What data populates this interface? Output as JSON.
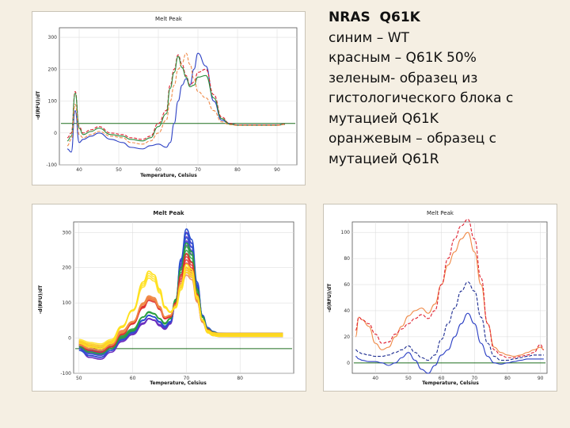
{
  "legend": {
    "lines": [
      "NRAS  Q61K",
      "синим – WT",
      "красным – Q61K 50%",
      "зеленым- образец из",
      "гистологического блока с",
      "мутацией Q61K",
      "оранжевым – образец с",
      "мутацией Q61R"
    ]
  },
  "chart_data": [
    {
      "type": "line",
      "title": "Melt Peak",
      "xlabel": "Temperature, Celsius",
      "ylabel": "-d(RFU)/dT",
      "xlim": [
        35,
        95
      ],
      "ylim": [
        -100,
        330
      ],
      "xticks": [
        40,
        50,
        60,
        70,
        80,
        90
      ],
      "yticks": [
        -100,
        0,
        100,
        200,
        300
      ],
      "threshold": 30,
      "series": [
        {
          "name": "WT",
          "color": "#2b3fc4",
          "x": [
            37,
            38,
            39,
            40,
            41,
            43,
            45,
            48,
            51,
            53,
            56,
            58,
            60,
            62,
            63,
            64,
            65,
            66,
            67,
            68,
            69,
            70,
            72,
            74,
            76,
            78,
            80,
            85,
            90,
            92
          ],
          "y": [
            -50,
            -60,
            70,
            -30,
            -20,
            -10,
            0,
            -20,
            -30,
            -45,
            -50,
            -40,
            -35,
            -45,
            -30,
            30,
            100,
            150,
            170,
            150,
            200,
            250,
            210,
            100,
            40,
            30,
            25,
            25,
            25,
            28
          ]
        },
        {
          "name": "Q61K 50%",
          "color": "#e02030",
          "x": [
            37,
            38,
            39,
            40,
            41,
            43,
            45,
            48,
            51,
            53,
            56,
            58,
            60,
            62,
            63,
            64,
            65,
            66,
            67,
            68,
            69,
            70,
            72,
            74,
            76,
            78,
            80,
            85,
            90,
            92
          ],
          "y": [
            -15,
            0,
            130,
            20,
            0,
            10,
            20,
            0,
            -5,
            -15,
            -20,
            -10,
            30,
            70,
            150,
            200,
            245,
            215,
            180,
            150,
            160,
            190,
            200,
            120,
            50,
            30,
            25,
            25,
            25,
            28
          ]
        },
        {
          "name": "Образец из гистологического блока с мутацией Q61K",
          "color": "#2a8c3a",
          "x": [
            37,
            38,
            39,
            40,
            41,
            43,
            45,
            48,
            51,
            53,
            56,
            58,
            60,
            62,
            63,
            64,
            65,
            66,
            67,
            68,
            69,
            70,
            72,
            74,
            76,
            78,
            80,
            85,
            90,
            92
          ],
          "y": [
            -25,
            -10,
            125,
            15,
            -5,
            5,
            15,
            -5,
            -10,
            -20,
            -25,
            -15,
            20,
            60,
            140,
            190,
            240,
            205,
            175,
            145,
            150,
            175,
            180,
            110,
            45,
            28,
            24,
            24,
            24,
            27
          ]
        },
        {
          "name": "Образец с мутацией Q61R",
          "color": "#f08a48",
          "x": [
            37,
            38,
            39,
            40,
            41,
            43,
            45,
            48,
            51,
            53,
            56,
            58,
            60,
            62,
            63,
            64,
            65,
            66,
            67,
            68,
            69,
            70,
            72,
            74,
            76,
            78,
            80,
            85,
            90,
            92
          ],
          "y": [
            -40,
            -20,
            90,
            -5,
            -15,
            -5,
            5,
            -10,
            -15,
            -30,
            -35,
            -25,
            0,
            40,
            100,
            150,
            200,
            220,
            250,
            215,
            170,
            130,
            110,
            70,
            35,
            26,
            24,
            24,
            24,
            27
          ]
        }
      ]
    },
    {
      "type": "line",
      "title": "Melt Peak",
      "xlabel": "Temperature, Celsius",
      "ylabel": "-d(RFU)/dT",
      "xlim": [
        49,
        90
      ],
      "ylim": [
        -100,
        330
      ],
      "xticks": [
        50,
        60,
        70,
        80
      ],
      "yticks": [
        -100,
        0,
        100,
        200,
        300
      ],
      "threshold": -30,
      "series": [
        {
          "name": "violet",
          "color": "#6a2ec0",
          "x": [
            50,
            52,
            54,
            56,
            58,
            60,
            62,
            63,
            64,
            65,
            66,
            67,
            68,
            69,
            70,
            71,
            72,
            73,
            74,
            75,
            76,
            78,
            80,
            85,
            88
          ],
          "y": [
            -30,
            -55,
            -60,
            -40,
            -10,
            10,
            40,
            55,
            50,
            35,
            25,
            40,
            100,
            220,
            300,
            270,
            150,
            60,
            20,
            10,
            5,
            5,
            5,
            5,
            5
          ]
        },
        {
          "name": "blue",
          "color": "#2a4fd0",
          "x": [
            50,
            52,
            54,
            56,
            58,
            60,
            62,
            63,
            64,
            65,
            66,
            67,
            68,
            69,
            70,
            71,
            72,
            73,
            74,
            75,
            76,
            78,
            80,
            85,
            88
          ],
          "y": [
            -35,
            -50,
            -55,
            -35,
            -5,
            15,
            50,
            65,
            60,
            45,
            30,
            45,
            105,
            225,
            310,
            280,
            160,
            65,
            25,
            12,
            6,
            5,
            5,
            5,
            5
          ]
        },
        {
          "name": "green",
          "color": "#2aa040",
          "x": [
            50,
            52,
            54,
            56,
            58,
            60,
            62,
            63,
            64,
            65,
            66,
            67,
            68,
            69,
            70,
            71,
            72,
            73,
            74,
            75,
            76,
            78,
            80,
            85,
            88
          ],
          "y": [
            -25,
            -40,
            -45,
            -30,
            0,
            20,
            60,
            75,
            70,
            55,
            40,
            55,
            110,
            200,
            270,
            245,
            140,
            60,
            20,
            10,
            5,
            5,
            5,
            5,
            5
          ]
        },
        {
          "name": "red",
          "color": "#e03030",
          "x": [
            50,
            52,
            54,
            56,
            58,
            60,
            62,
            63,
            64,
            65,
            66,
            67,
            68,
            69,
            70,
            71,
            72,
            73,
            74,
            75,
            76,
            78,
            80,
            85,
            88
          ],
          "y": [
            -20,
            -35,
            -40,
            -25,
            10,
            40,
            90,
            115,
            110,
            85,
            55,
            60,
            100,
            180,
            240,
            215,
            125,
            50,
            18,
            8,
            5,
            5,
            5,
            5,
            5
          ]
        },
        {
          "name": "orange",
          "color": "#f08a48",
          "x": [
            50,
            52,
            54,
            56,
            58,
            60,
            62,
            63,
            64,
            65,
            66,
            67,
            68,
            69,
            70,
            71,
            72,
            73,
            74,
            75,
            76,
            78,
            80,
            85,
            88
          ],
          "y": [
            -20,
            -30,
            -35,
            -20,
            15,
            45,
            100,
            120,
            115,
            90,
            60,
            65,
            95,
            160,
            200,
            185,
            110,
            45,
            15,
            7,
            5,
            5,
            5,
            5,
            5
          ]
        },
        {
          "name": "yellow",
          "color": "#ffe020",
          "x": [
            50,
            52,
            54,
            56,
            58,
            60,
            62,
            63,
            64,
            65,
            66,
            67,
            68,
            69,
            70,
            71,
            72,
            73,
            74,
            75,
            76,
            78,
            80,
            85,
            88
          ],
          "y": [
            -15,
            -25,
            -30,
            -15,
            30,
            80,
            160,
            190,
            180,
            140,
            90,
            75,
            90,
            150,
            210,
            195,
            120,
            50,
            15,
            7,
            5,
            5,
            5,
            5,
            5
          ]
        }
      ]
    },
    {
      "type": "line",
      "title": "Melt Peak",
      "xlabel": "Temperature, Celsius",
      "ylabel": "-d(RFU)/dT",
      "xlim": [
        33,
        92
      ],
      "ylim": [
        -8,
        108
      ],
      "xticks": [
        40,
        50,
        60,
        70,
        80,
        90
      ],
      "yticks": [
        0,
        20,
        40,
        60,
        80,
        100
      ],
      "threshold": 0,
      "series": [
        {
          "name": "blue",
          "color": "#2b3fc4",
          "x": [
            34,
            35,
            36,
            38,
            40,
            42,
            44,
            46,
            48,
            50,
            52,
            54,
            56,
            58,
            60,
            62,
            64,
            66,
            68,
            70,
            72,
            74,
            76,
            78,
            80,
            82,
            84,
            86,
            88,
            90,
            91
          ],
          "y": [
            5,
            3,
            2,
            1,
            1,
            0,
            -2,
            0,
            4,
            8,
            2,
            -5,
            -8,
            -2,
            6,
            10,
            20,
            30,
            38,
            30,
            15,
            5,
            0,
            -1,
            0,
            1,
            2,
            3,
            3,
            3,
            3
          ]
        },
        {
          "name": "dark-blue-dashed",
          "color": "#1a2a90",
          "x": [
            34,
            35,
            36,
            38,
            40,
            42,
            44,
            46,
            48,
            50,
            52,
            54,
            56,
            58,
            60,
            62,
            64,
            66,
            68,
            70,
            72,
            74,
            76,
            78,
            80,
            82,
            84,
            86,
            88,
            90,
            91
          ],
          "y": [
            10,
            8,
            7,
            6,
            5,
            5,
            6,
            8,
            10,
            13,
            8,
            4,
            2,
            6,
            18,
            30,
            42,
            55,
            62,
            55,
            35,
            15,
            5,
            2,
            2,
            3,
            4,
            5,
            6,
            6,
            6
          ]
        },
        {
          "name": "orange",
          "color": "#f08a48",
          "x": [
            34,
            35,
            36,
            38,
            40,
            42,
            44,
            46,
            48,
            50,
            52,
            54,
            56,
            58,
            60,
            62,
            64,
            66,
            68,
            70,
            72,
            74,
            76,
            78,
            80,
            82,
            84,
            86,
            88,
            90,
            91
          ],
          "y": [
            20,
            35,
            33,
            28,
            15,
            10,
            12,
            20,
            28,
            36,
            40,
            42,
            38,
            45,
            60,
            75,
            85,
            95,
            100,
            85,
            60,
            30,
            12,
            8,
            6,
            5,
            6,
            8,
            10,
            12,
            10
          ]
        },
        {
          "name": "red",
          "color": "#e02030",
          "x": [
            34,
            35,
            36,
            38,
            40,
            42,
            44,
            46,
            48,
            50,
            52,
            54,
            56,
            58,
            60,
            62,
            64,
            66,
            68,
            70,
            72,
            74,
            76,
            78,
            80,
            82,
            84,
            86,
            88,
            90,
            91
          ],
          "y": [
            25,
            35,
            33,
            30,
            22,
            15,
            16,
            22,
            26,
            30,
            34,
            37,
            34,
            40,
            60,
            80,
            95,
            105,
            110,
            95,
            65,
            30,
            10,
            6,
            4,
            4,
            5,
            6,
            8,
            14,
            10
          ]
        }
      ]
    }
  ]
}
